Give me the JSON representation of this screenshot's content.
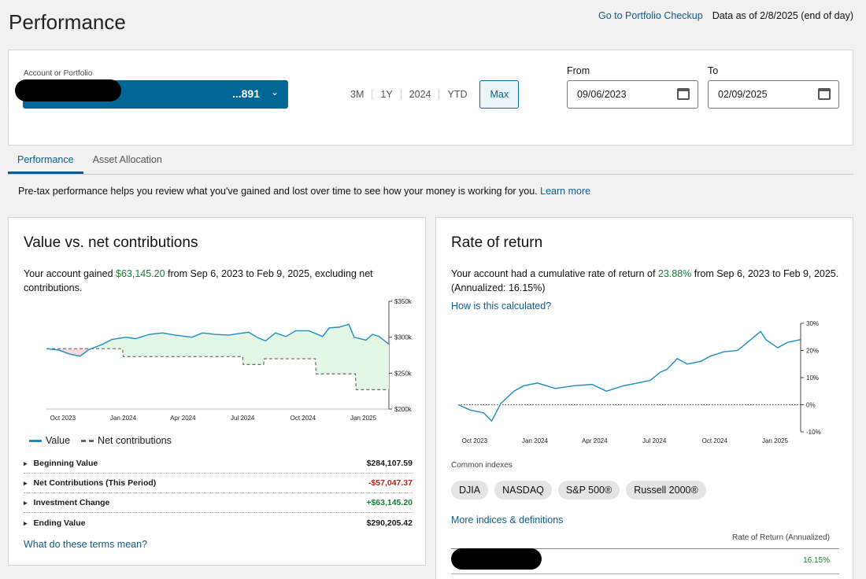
{
  "page": {
    "title": "Performance",
    "portfolio_checkup_link": "Go to Portfolio Checkup",
    "data_as_of": "Data as of 2/8/2025 (end of day)"
  },
  "filters": {
    "account_label": "Account or Portfolio",
    "account_value": "...891",
    "ranges": [
      "3M",
      "1Y",
      "2024",
      "YTD",
      "Max"
    ],
    "active_range": "Max",
    "from_label": "From",
    "from_value": "09/06/2023",
    "to_label": "To",
    "to_value": "02/09/2025"
  },
  "tabs": [
    "Performance",
    "Asset Allocation"
  ],
  "intro": {
    "text": "Pre-tax performance helps you review what you've gained and lost over time to see how your money is working for you.",
    "link": "Learn more"
  },
  "value_card": {
    "title": "Value vs. net contributions",
    "summary_pre": "Your account gained ",
    "summary_amount": "$63,145.20",
    "summary_post": " from Sep 6, 2023 to Feb 9, 2025, excluding net contributions.",
    "legend_value": "Value",
    "legend_net": "Net contributions",
    "stats": [
      {
        "label": "Beginning Value",
        "value": "$284,107.59",
        "tone": "neutral"
      },
      {
        "label": "Net Contributions (This Period)",
        "value": "-$57,047.37",
        "tone": "negative"
      },
      {
        "label": "Investment Change",
        "value": "+$63,145.20",
        "tone": "positive"
      },
      {
        "label": "Ending Value",
        "value": "$290,205.42",
        "tone": "neutral"
      }
    ],
    "terms_link": "What do these terms mean?"
  },
  "ror_card": {
    "title": "Rate of return",
    "summary_pre": "Your account had a cumulative rate of return of ",
    "summary_pct": "23.88%",
    "summary_post": " from Sep 6, 2023 to Feb 9, 2025.",
    "summary_annualized": "(Annualized: 16.15%)",
    "how_link": "How is this calculated?",
    "indexes_label": "Common indexes",
    "indexes": [
      "DJIA",
      "NASDAQ",
      "S&P 500®",
      "Russell 2000®"
    ],
    "more_link": "More indices & definitions",
    "table_header": "Rate of Return (Annualized)",
    "row_value": "16.15%"
  },
  "colors": {
    "accent": "#006694",
    "value_line": "#1b8cc4",
    "gain_fill": "#e4f7e4",
    "loss_fill": "#f8d9db"
  },
  "chart_data": [
    {
      "type": "line",
      "title": "Value vs. net contributions",
      "x_ticks": [
        "Oct 2023",
        "Jan 2024",
        "Apr 2024",
        "Jul 2024",
        "Oct 2024",
        "Jan 2025"
      ],
      "y_ticks": [
        "$350k",
        "$300k",
        "$250k",
        "$200k"
      ],
      "ylim": [
        200000,
        350000
      ],
      "xlim": [
        "2023-09-06",
        "2025-02-09"
      ],
      "series": [
        {
          "name": "Value",
          "x": [
            "2023-09-06",
            "2023-09-25",
            "2023-10-10",
            "2023-10-27",
            "2023-11-10",
            "2023-11-30",
            "2023-12-15",
            "2024-01-05",
            "2024-01-20",
            "2024-02-10",
            "2024-03-01",
            "2024-03-20",
            "2024-04-15",
            "2024-05-01",
            "2024-05-20",
            "2024-06-10",
            "2024-06-25",
            "2024-07-10",
            "2024-07-25",
            "2024-08-05",
            "2024-08-20",
            "2024-09-05",
            "2024-09-20",
            "2024-10-10",
            "2024-10-31",
            "2024-11-10",
            "2024-11-25",
            "2024-12-10",
            "2024-12-18",
            "2025-01-05",
            "2025-01-15",
            "2025-01-25",
            "2025-02-09"
          ],
          "values": [
            284100,
            282000,
            277000,
            273500,
            283000,
            290000,
            297000,
            300000,
            298000,
            304000,
            306000,
            303000,
            300000,
            306000,
            304000,
            303000,
            305000,
            307000,
            299000,
            295000,
            306000,
            301000,
            309000,
            309000,
            301000,
            313000,
            314000,
            318000,
            300000,
            296000,
            304000,
            301000,
            290205
          ]
        },
        {
          "name": "Net contributions",
          "x": [
            "2023-09-06",
            "2023-12-31",
            "2024-01-01",
            "2024-07-01",
            "2024-07-02",
            "2024-08-02",
            "2024-08-03",
            "2024-10-20",
            "2024-10-21",
            "2024-12-20",
            "2024-12-21",
            "2025-02-09"
          ],
          "values": [
            284100,
            284100,
            273000,
            273000,
            262000,
            262000,
            270000,
            270000,
            249000,
            249000,
            227000,
            227000
          ]
        }
      ]
    },
    {
      "type": "line",
      "title": "Rate of return",
      "x_ticks": [
        "Oct 2023",
        "Jan 2024",
        "Apr 2024",
        "Jul 2024",
        "Oct 2024",
        "Jan 2025"
      ],
      "y_ticks": [
        "30%",
        "20%",
        "10%",
        "0%",
        "-10%"
      ],
      "ylim": [
        -10,
        30
      ],
      "xlim": [
        "2023-09-06",
        "2025-02-09"
      ],
      "series": [
        {
          "name": "Rate of return",
          "x": [
            "2023-09-06",
            "2023-09-25",
            "2023-10-15",
            "2023-10-27",
            "2023-11-10",
            "2023-11-30",
            "2023-12-15",
            "2024-01-05",
            "2024-02-01",
            "2024-03-01",
            "2024-03-28",
            "2024-04-19",
            "2024-05-15",
            "2024-06-05",
            "2024-06-25",
            "2024-07-10",
            "2024-07-20",
            "2024-08-05",
            "2024-08-20",
            "2024-09-10",
            "2024-09-25",
            "2024-10-15",
            "2024-11-05",
            "2024-11-25",
            "2024-12-10",
            "2024-12-18",
            "2025-01-05",
            "2025-01-20",
            "2025-02-09"
          ],
          "values": [
            0,
            -2,
            -3,
            -6,
            0.5,
            5,
            7,
            8,
            6,
            7,
            7.5,
            5,
            7,
            8,
            9,
            12,
            13,
            17,
            15,
            16,
            18,
            19.5,
            20,
            24,
            27,
            24,
            21,
            23,
            24
          ]
        }
      ]
    }
  ]
}
